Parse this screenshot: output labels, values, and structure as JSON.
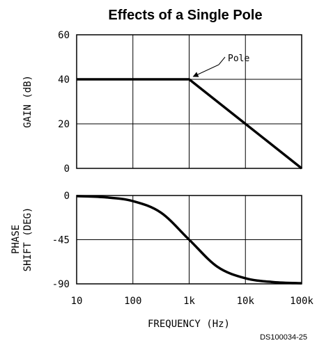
{
  "chart_data": [
    {
      "type": "line",
      "title": "Effects of a Single Pole",
      "ylabel": "GAIN (dB)",
      "xscale": "log",
      "xlim": [
        10,
        100000
      ],
      "ylim": [
        0,
        60
      ],
      "yticks": [
        "0",
        "20",
        "40",
        "60"
      ],
      "grid": true,
      "series": [
        {
          "x": [
            10,
            100,
            1000,
            10000,
            100000
          ],
          "values": [
            40,
            40,
            40,
            20,
            0
          ]
        }
      ],
      "annotation": {
        "text": "Pole",
        "x": 1000,
        "y": 40
      }
    },
    {
      "type": "line",
      "ylabel_lines": [
        "PHASE",
        "SHIFT (DEG)"
      ],
      "xlabel": "FREQUENCY (Hz)",
      "xscale": "log",
      "xlim": [
        10,
        100000
      ],
      "ylim": [
        -90,
        0
      ],
      "yticks": [
        "0",
        "-45",
        "-90"
      ],
      "xticks": [
        "10",
        "100",
        "1k",
        "10k",
        "100k"
      ],
      "grid": true,
      "series": [
        {
          "x": [
            10,
            31.6,
            100,
            316,
            1000,
            3162,
            10000,
            31623,
            100000
          ],
          "values": [
            -0.6,
            -1.8,
            -5.7,
            -17.5,
            -45,
            -72.5,
            -84.3,
            -88.2,
            -89.4
          ]
        }
      ]
    }
  ],
  "footer": {
    "code": "DS100034-25"
  }
}
